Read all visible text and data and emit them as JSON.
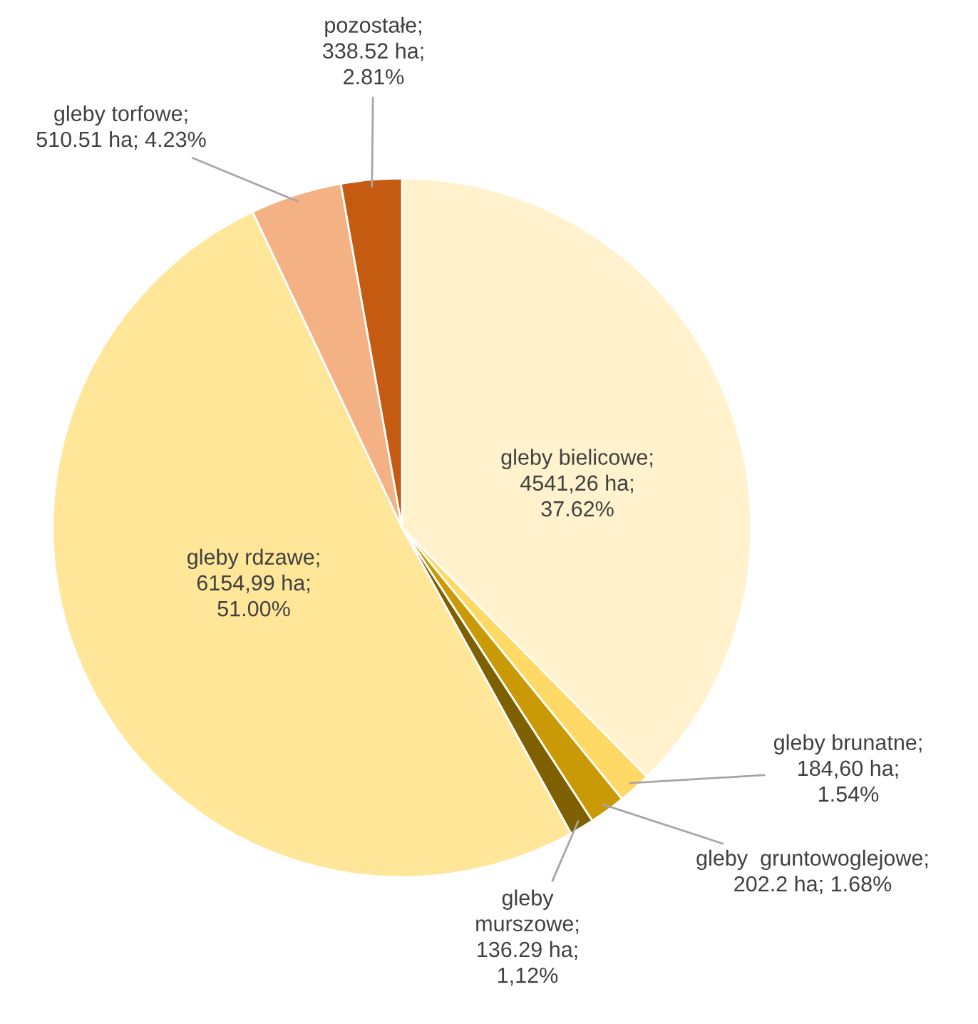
{
  "chart_data": {
    "type": "pie",
    "categories": [
      "gleby bielicowe",
      "gleby brunatne",
      "gleby  gruntowoglejowe",
      "gleby murszowe",
      "gleby rdzawe",
      "gleby torfowe",
      "pozostałe"
    ],
    "values": [
      4541.26,
      184.6,
      202.2,
      136.29,
      6154.99,
      510.51,
      338.52
    ],
    "colors": [
      "#fff2cc",
      "#ffd966",
      "#c99a06",
      "#7f6000",
      "#ffe699",
      "#f4b183",
      "#c55a11"
    ],
    "value_labels": [
      ";\n4541,26 ha;\n37.62%",
      ";\n184,60 ha;\n1.54%",
      ";\n202.2 ha; 1.68%",
      ";\n136.29 ha;\n1,12%",
      ";\n6154,99 ha;\n51.00%",
      ";\n510.51 ha; 4.23%",
      ";\n338.52 ha;\n2.81%"
    ]
  }
}
